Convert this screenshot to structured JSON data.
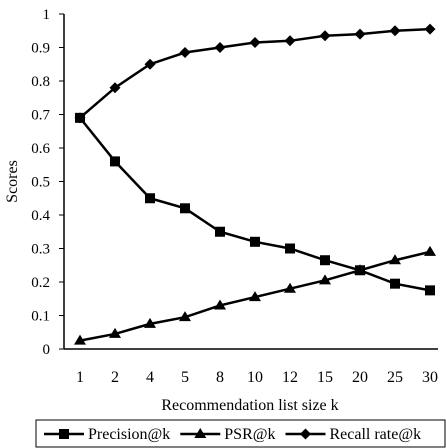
{
  "chart_data": {
    "type": "line",
    "xlabel": "Recommendation list size k",
    "ylabel": "Scores",
    "ylim": [
      0,
      1
    ],
    "yticks": [
      "0",
      "0.1",
      "0.2",
      "0.3",
      "0.4",
      "0.5",
      "0.6",
      "0.7",
      "0.8",
      "0.9",
      "1"
    ],
    "categories": [
      "1",
      "2",
      "4",
      "5",
      "8",
      "10",
      "12",
      "15",
      "20",
      "25",
      "30"
    ],
    "grid": false,
    "legend_position": "bottom",
    "series": [
      {
        "name": "Precision@k",
        "marker": "square",
        "values": [
          0.69,
          0.56,
          0.45,
          0.42,
          0.35,
          0.32,
          0.3,
          0.265,
          0.235,
          0.195,
          0.175
        ]
      },
      {
        "name": "PSR@k",
        "marker": "triangle",
        "values": [
          0.025,
          0.045,
          0.075,
          0.095,
          0.13,
          0.155,
          0.18,
          0.205,
          0.235,
          0.265,
          0.29
        ]
      },
      {
        "name": "Recall rate@k",
        "marker": "diamond",
        "values": [
          0.69,
          0.78,
          0.85,
          0.885,
          0.9,
          0.915,
          0.92,
          0.935,
          0.94,
          0.95,
          0.955
        ]
      }
    ]
  }
}
